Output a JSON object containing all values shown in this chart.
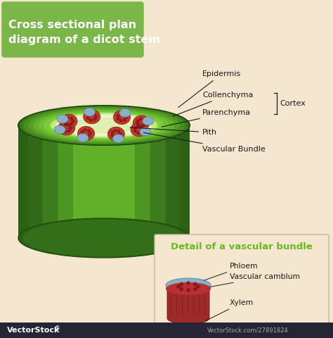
{
  "bg_color": "#f5e6d0",
  "title_box_color": "#7ab648",
  "title_text": "Cross sectional plan\ndiagram of a dicot stem",
  "title_text_color": "#ffffff",
  "title_fontsize": 11.5,
  "vb_red_color": "#c0392b",
  "vb_blue_color": "#8aafc8",
  "annotation_color": "#1a1a1a",
  "annotation_fontsize": 8.0,
  "detail_title_color": "#6ab820",
  "detail_title_fontsize": 9.5,
  "detail_bg_color": "#f5e6d0",
  "footer_bg": "#252535",
  "footer_text2": "®",
  "footer_text3": "VectorStock.com/27891824",
  "cortex_label": "Cortex",
  "detail_labels": [
    "Phloem",
    "Vascular camblum",
    "Xylem"
  ],
  "detail_title": "Detail of a vascular bundle",
  "labels": [
    "Epidermis",
    "Collenchyma",
    "Parenchyma",
    "Pith",
    "Vascular Bundle"
  ]
}
